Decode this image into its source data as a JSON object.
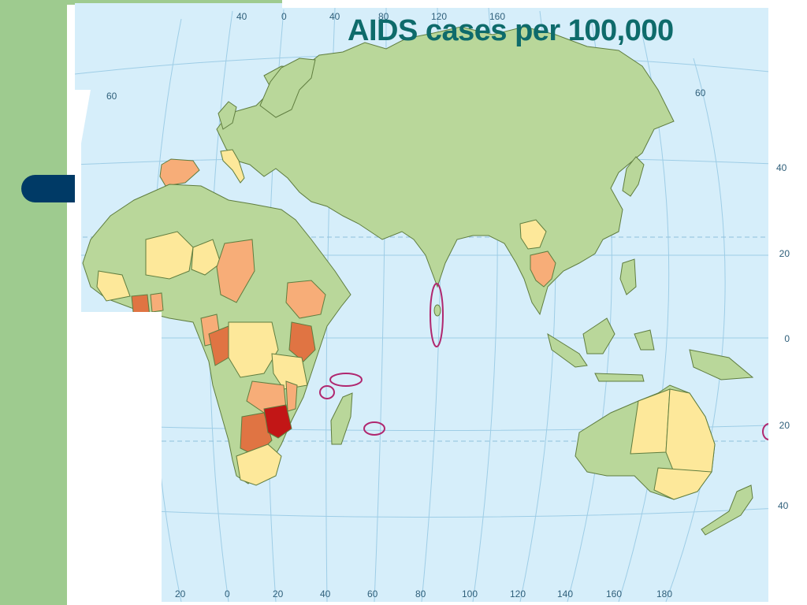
{
  "slide": {
    "title": "AIDS cases per 100,000"
  },
  "colors": {
    "ocean": "#d6eefa",
    "land_no_data": "#b9d79a",
    "level_1": "#fde89a",
    "level_2": "#f7ad78",
    "level_3": "#e07443",
    "level_4": "#c21616",
    "highlight_circle": "#b0276f",
    "slide_green": "#9ecb8f",
    "bullet": "#003a66",
    "title": "#0e6b6b"
  },
  "map": {
    "top_longitude_labels": [
      "40",
      "0",
      "40",
      "80",
      "120",
      "160"
    ],
    "bottom_longitude_labels": [
      "20",
      "0",
      "20",
      "40",
      "60",
      "80",
      "100",
      "120",
      "140",
      "160",
      "180"
    ],
    "left_latitude_labels": [
      "60"
    ],
    "right_latitude_labels": [
      "60",
      "40",
      "20",
      "0",
      "20",
      "40"
    ]
  }
}
